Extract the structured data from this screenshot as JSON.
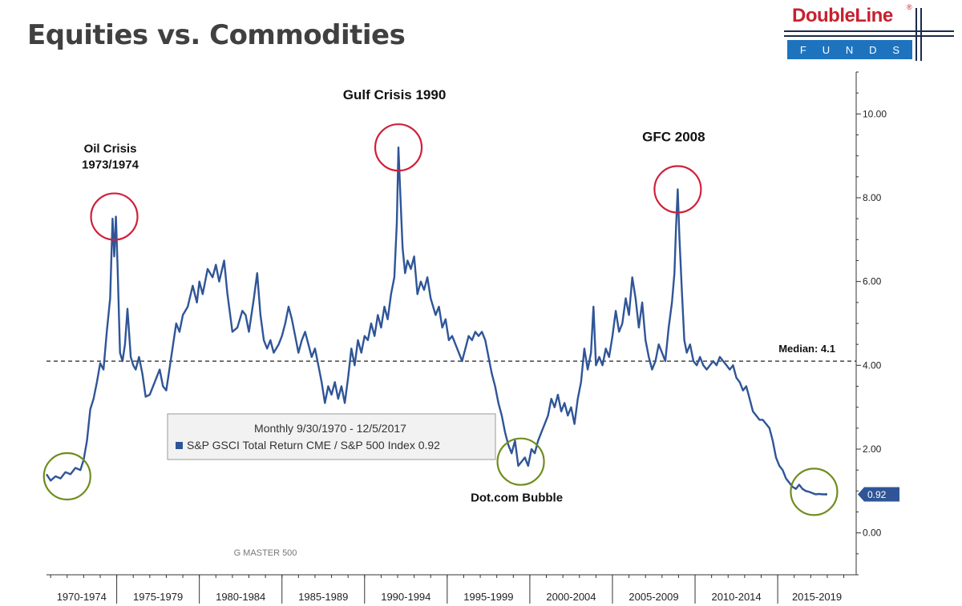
{
  "page": {
    "title": "Equities vs. Commodities"
  },
  "logo": {
    "brand": "DoubleLine",
    "reg": "®",
    "sub": [
      "F",
      "U",
      "N",
      "D",
      "S"
    ]
  },
  "chart_data": {
    "type": "line",
    "series": [
      {
        "name": "S&P GSCI Total Return CME / S&P 500 Index",
        "color": "#2f5597",
        "points": [
          [
            1970.75,
            1.4
          ],
          [
            1971.0,
            1.25
          ],
          [
            1971.3,
            1.35
          ],
          [
            1971.6,
            1.3
          ],
          [
            1971.9,
            1.45
          ],
          [
            1972.2,
            1.4
          ],
          [
            1972.5,
            1.55
          ],
          [
            1972.8,
            1.5
          ],
          [
            1973.0,
            1.75
          ],
          [
            1973.2,
            2.2
          ],
          [
            1973.4,
            2.95
          ],
          [
            1973.6,
            3.2
          ],
          [
            1973.8,
            3.6
          ],
          [
            1974.0,
            4.05
          ],
          [
            1974.2,
            3.9
          ],
          [
            1974.4,
            4.8
          ],
          [
            1974.6,
            5.6
          ],
          [
            1974.75,
            7.5
          ],
          [
            1974.85,
            6.6
          ],
          [
            1974.95,
            7.55
          ],
          [
            1975.05,
            6.4
          ],
          [
            1975.2,
            4.3
          ],
          [
            1975.35,
            4.1
          ],
          [
            1975.5,
            4.5
          ],
          [
            1975.65,
            5.35
          ],
          [
            1975.85,
            4.2
          ],
          [
            1976.0,
            4.0
          ],
          [
            1976.15,
            3.9
          ],
          [
            1976.35,
            4.2
          ],
          [
            1976.55,
            3.8
          ],
          [
            1976.75,
            3.25
          ],
          [
            1977.0,
            3.3
          ],
          [
            1977.3,
            3.6
          ],
          [
            1977.6,
            3.9
          ],
          [
            1977.8,
            3.5
          ],
          [
            1978.0,
            3.4
          ],
          [
            1978.3,
            4.2
          ],
          [
            1978.6,
            5.0
          ],
          [
            1978.8,
            4.8
          ],
          [
            1979.0,
            5.2
          ],
          [
            1979.3,
            5.4
          ],
          [
            1979.6,
            5.9
          ],
          [
            1979.85,
            5.5
          ],
          [
            1980.0,
            6.0
          ],
          [
            1980.2,
            5.7
          ],
          [
            1980.5,
            6.3
          ],
          [
            1980.8,
            6.1
          ],
          [
            1981.0,
            6.4
          ],
          [
            1981.2,
            6.0
          ],
          [
            1981.5,
            6.5
          ],
          [
            1981.7,
            5.7
          ],
          [
            1982.0,
            4.8
          ],
          [
            1982.3,
            4.9
          ],
          [
            1982.6,
            5.3
          ],
          [
            1982.8,
            5.2
          ],
          [
            1983.0,
            4.8
          ],
          [
            1983.3,
            5.6
          ],
          [
            1983.5,
            6.2
          ],
          [
            1983.7,
            5.2
          ],
          [
            1983.9,
            4.6
          ],
          [
            1984.1,
            4.4
          ],
          [
            1984.3,
            4.6
          ],
          [
            1984.5,
            4.3
          ],
          [
            1984.8,
            4.5
          ],
          [
            1985.0,
            4.7
          ],
          [
            1985.2,
            5.0
          ],
          [
            1985.4,
            5.4
          ],
          [
            1985.6,
            5.1
          ],
          [
            1985.8,
            4.7
          ],
          [
            1986.0,
            4.3
          ],
          [
            1986.2,
            4.6
          ],
          [
            1986.4,
            4.8
          ],
          [
            1986.6,
            4.5
          ],
          [
            1986.8,
            4.2
          ],
          [
            1987.0,
            4.4
          ],
          [
            1987.2,
            4.0
          ],
          [
            1987.4,
            3.6
          ],
          [
            1987.6,
            3.1
          ],
          [
            1987.8,
            3.5
          ],
          [
            1988.0,
            3.3
          ],
          [
            1988.2,
            3.6
          ],
          [
            1988.4,
            3.2
          ],
          [
            1988.6,
            3.5
          ],
          [
            1988.8,
            3.1
          ],
          [
            1989.0,
            3.7
          ],
          [
            1989.2,
            4.4
          ],
          [
            1989.4,
            4.0
          ],
          [
            1989.6,
            4.6
          ],
          [
            1989.8,
            4.3
          ],
          [
            1990.0,
            4.7
          ],
          [
            1990.2,
            4.6
          ],
          [
            1990.4,
            5.0
          ],
          [
            1990.6,
            4.7
          ],
          [
            1990.8,
            5.2
          ],
          [
            1991.0,
            4.9
          ],
          [
            1991.2,
            5.4
          ],
          [
            1991.4,
            5.1
          ],
          [
            1991.6,
            5.7
          ],
          [
            1991.8,
            6.1
          ],
          [
            1991.95,
            7.4
          ],
          [
            1992.05,
            9.2
          ],
          [
            1992.15,
            8.2
          ],
          [
            1992.3,
            6.8
          ],
          [
            1992.45,
            6.2
          ],
          [
            1992.6,
            6.5
          ],
          [
            1992.8,
            6.3
          ],
          [
            1993.0,
            6.6
          ],
          [
            1993.2,
            5.7
          ],
          [
            1993.4,
            6.0
          ],
          [
            1993.6,
            5.8
          ],
          [
            1993.8,
            6.1
          ],
          [
            1994.0,
            5.6
          ],
          [
            1994.3,
            5.2
          ],
          [
            1994.5,
            5.4
          ],
          [
            1994.7,
            4.9
          ],
          [
            1994.9,
            5.1
          ],
          [
            1995.1,
            4.6
          ],
          [
            1995.3,
            4.7
          ],
          [
            1995.5,
            4.5
          ],
          [
            1995.7,
            4.3
          ],
          [
            1995.9,
            4.1
          ],
          [
            1996.1,
            4.4
          ],
          [
            1996.3,
            4.7
          ],
          [
            1996.5,
            4.6
          ],
          [
            1996.7,
            4.8
          ],
          [
            1996.9,
            4.7
          ],
          [
            1997.1,
            4.8
          ],
          [
            1997.3,
            4.6
          ],
          [
            1997.5,
            4.2
          ],
          [
            1997.7,
            3.8
          ],
          [
            1997.9,
            3.5
          ],
          [
            1998.1,
            3.1
          ],
          [
            1998.3,
            2.8
          ],
          [
            1998.5,
            2.4
          ],
          [
            1998.7,
            2.1
          ],
          [
            1998.9,
            1.9
          ],
          [
            1999.1,
            2.2
          ],
          [
            1999.3,
            1.6
          ],
          [
            1999.5,
            1.7
          ],
          [
            1999.7,
            1.8
          ],
          [
            1999.9,
            1.6
          ],
          [
            2000.1,
            2.0
          ],
          [
            2000.3,
            1.9
          ],
          [
            2000.5,
            2.2
          ],
          [
            2000.7,
            2.4
          ],
          [
            2000.9,
            2.6
          ],
          [
            2001.1,
            2.8
          ],
          [
            2001.3,
            3.2
          ],
          [
            2001.5,
            3.0
          ],
          [
            2001.7,
            3.3
          ],
          [
            2001.9,
            2.9
          ],
          [
            2002.1,
            3.1
          ],
          [
            2002.3,
            2.8
          ],
          [
            2002.5,
            3.0
          ],
          [
            2002.7,
            2.6
          ],
          [
            2002.9,
            3.2
          ],
          [
            2003.1,
            3.6
          ],
          [
            2003.3,
            4.4
          ],
          [
            2003.5,
            3.9
          ],
          [
            2003.7,
            4.3
          ],
          [
            2003.85,
            5.4
          ],
          [
            2004.0,
            4.0
          ],
          [
            2004.2,
            4.2
          ],
          [
            2004.4,
            4.0
          ],
          [
            2004.6,
            4.4
          ],
          [
            2004.8,
            4.2
          ],
          [
            2005.0,
            4.7
          ],
          [
            2005.2,
            5.3
          ],
          [
            2005.4,
            4.8
          ],
          [
            2005.6,
            5.0
          ],
          [
            2005.8,
            5.6
          ],
          [
            2006.0,
            5.2
          ],
          [
            2006.2,
            6.1
          ],
          [
            2006.4,
            5.6
          ],
          [
            2006.6,
            4.9
          ],
          [
            2006.8,
            5.5
          ],
          [
            2007.0,
            4.6
          ],
          [
            2007.2,
            4.2
          ],
          [
            2007.4,
            3.9
          ],
          [
            2007.6,
            4.1
          ],
          [
            2007.8,
            4.5
          ],
          [
            2008.0,
            4.3
          ],
          [
            2008.2,
            4.1
          ],
          [
            2008.4,
            4.9
          ],
          [
            2008.6,
            5.5
          ],
          [
            2008.75,
            6.2
          ],
          [
            2008.85,
            7.3
          ],
          [
            2008.95,
            8.2
          ],
          [
            2009.05,
            7.1
          ],
          [
            2009.2,
            5.8
          ],
          [
            2009.35,
            4.6
          ],
          [
            2009.5,
            4.3
          ],
          [
            2009.7,
            4.5
          ],
          [
            2009.9,
            4.1
          ],
          [
            2010.1,
            4.0
          ],
          [
            2010.3,
            4.2
          ],
          [
            2010.5,
            4.0
          ],
          [
            2010.7,
            3.9
          ],
          [
            2010.9,
            4.0
          ],
          [
            2011.1,
            4.1
          ],
          [
            2011.3,
            4.0
          ],
          [
            2011.5,
            4.2
          ],
          [
            2011.7,
            4.1
          ],
          [
            2011.9,
            4.0
          ],
          [
            2012.1,
            3.9
          ],
          [
            2012.3,
            4.0
          ],
          [
            2012.5,
            3.7
          ],
          [
            2012.7,
            3.6
          ],
          [
            2012.9,
            3.4
          ],
          [
            2013.1,
            3.5
          ],
          [
            2013.3,
            3.2
          ],
          [
            2013.5,
            2.9
          ],
          [
            2013.7,
            2.8
          ],
          [
            2013.9,
            2.7
          ],
          [
            2014.1,
            2.7
          ],
          [
            2014.3,
            2.6
          ],
          [
            2014.5,
            2.5
          ],
          [
            2014.7,
            2.2
          ],
          [
            2014.9,
            1.8
          ],
          [
            2015.1,
            1.6
          ],
          [
            2015.3,
            1.5
          ],
          [
            2015.5,
            1.3
          ],
          [
            2015.7,
            1.2
          ],
          [
            2015.9,
            1.1
          ],
          [
            2016.1,
            1.05
          ],
          [
            2016.3,
            1.15
          ],
          [
            2016.5,
            1.05
          ],
          [
            2016.7,
            1.0
          ],
          [
            2016.9,
            0.98
          ],
          [
            2017.1,
            0.95
          ],
          [
            2017.3,
            0.92
          ],
          [
            2017.5,
            0.93
          ],
          [
            2017.7,
            0.92
          ],
          [
            2017.93,
            0.92
          ]
        ]
      }
    ],
    "xlim": [
      1970.75,
      2019.75
    ],
    "ylim": [
      -1.0,
      11.0
    ],
    "y_ticks": [
      0,
      2,
      4,
      6,
      8,
      10
    ],
    "y_tick_labels": [
      "0.00",
      "2.00",
      "4.00",
      "6.00",
      "8.00",
      "10.00"
    ],
    "y_axis_side": "right",
    "x_period_labels": [
      "1970-1974",
      "1975-1979",
      "1980-1984",
      "1985-1989",
      "1990-1994",
      "1995-1999",
      "2000-2004",
      "2005-2009",
      "2010-2014",
      "2015-2019"
    ],
    "median": {
      "value": 4.1,
      "label": "Median: 4.1"
    },
    "last_value": {
      "value": 0.92,
      "label": "0.92"
    },
    "legend": {
      "line1": "Monthly 9/30/1970 - 12/5/2017",
      "line2": "S&P GSCI Total Return CME / S&P 500 Index 0.92"
    },
    "annotations": [
      {
        "text": [
          "Oil Crisis",
          "1973/1974"
        ],
        "x": 1974.85,
        "y": 7.55,
        "circle_color": "#d0203a"
      },
      {
        "text": [
          "Gulf Crisis 1990"
        ],
        "x": 1992.05,
        "y": 9.2,
        "circle_color": "#d0203a"
      },
      {
        "text": [
          "GFC 2008"
        ],
        "x": 2008.95,
        "y": 8.2,
        "circle_color": "#d0203a"
      },
      {
        "text": [
          "Dot.com Bubble"
        ],
        "x": 1999.45,
        "y": 1.7,
        "circle_color": "#6f8d1e"
      },
      {
        "text": [],
        "x": 1972.0,
        "y": 1.35,
        "circle_color": "#6f8d1e"
      },
      {
        "text": [],
        "x": 2017.2,
        "y": 0.98,
        "circle_color": "#6f8d1e"
      }
    ],
    "watermark": "G MASTER 500",
    "grid": false
  }
}
